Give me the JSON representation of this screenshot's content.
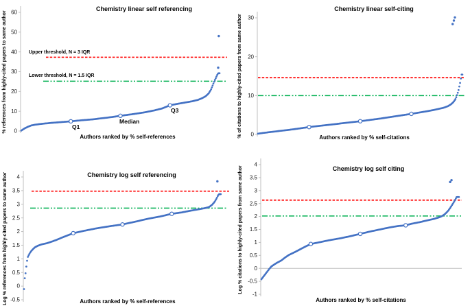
{
  "colors": {
    "dots": "#4472C4",
    "upper_threshold_line": "#FF0000",
    "lower_threshold_line": "#00B050",
    "axis": "#BFBFBF",
    "zero_line": "#BDBDBD",
    "text": "#000000"
  },
  "chart_data": [
    {
      "type": "scatter",
      "position": "top-left",
      "title": "Chemistry linear self referencing",
      "xlabel": "Authors ranked by % self-references",
      "ylabel": "% references from highly-cited papers to same author",
      "ylim": [
        0,
        60
      ],
      "yticks": [
        0,
        10,
        20,
        30,
        40,
        50,
        60
      ],
      "grid": false,
      "legend": "none",
      "thresholds": {
        "upper": {
          "value": 37.3,
          "label": "Upper threshold, N = 3 IQR"
        },
        "lower": {
          "value": 25.2,
          "label": "Lower threshold, N = 1.5 IQR"
        }
      },
      "quartiles": {
        "q1": {
          "x": 0.25,
          "value": 4.9,
          "label": "Q1"
        },
        "median": {
          "x": 0.5,
          "value": 7.7,
          "label": "Median"
        },
        "q3": {
          "x": 0.75,
          "value": 13,
          "label": "Q3"
        }
      },
      "curve": [
        [
          0,
          0.2
        ],
        [
          0.01,
          0.9
        ],
        [
          0.02,
          1.5
        ],
        [
          0.035,
          2.2
        ],
        [
          0.05,
          2.8
        ],
        [
          0.07,
          3.2
        ],
        [
          0.1,
          3.6
        ],
        [
          0.15,
          4.1
        ],
        [
          0.2,
          4.5
        ],
        [
          0.25,
          4.9
        ],
        [
          0.3,
          5.4
        ],
        [
          0.36,
          5.9
        ],
        [
          0.42,
          6.6
        ],
        [
          0.46,
          7.1
        ],
        [
          0.5,
          7.7
        ],
        [
          0.56,
          8.5
        ],
        [
          0.62,
          9.4
        ],
        [
          0.67,
          10.4
        ],
        [
          0.71,
          11.4
        ],
        [
          0.75,
          13.0
        ],
        [
          0.78,
          13.6
        ],
        [
          0.82,
          14.3
        ],
        [
          0.86,
          15.0
        ],
        [
          0.89,
          15.7
        ],
        [
          0.91,
          16.5
        ],
        [
          0.93,
          17.6
        ],
        [
          0.945,
          19.0
        ],
        [
          0.957,
          21.0
        ],
        [
          0.967,
          23.5
        ],
        [
          0.975,
          25.5
        ],
        [
          0.982,
          27.0
        ],
        [
          0.988,
          28.3
        ],
        [
          0.993,
          29.2
        ]
      ],
      "outliers": [
        [
          0.993,
          32
        ],
        [
          0.996,
          48
        ]
      ],
      "zero_line": false
    },
    {
      "type": "scatter",
      "position": "top-right",
      "title": "Chemistry linear self-citing",
      "xlabel": "Authors ranked by % self-citations",
      "ylabel": "% of citations to highly-cited papers from same author",
      "ylim": [
        0,
        30
      ],
      "yticks": [
        0,
        10,
        20,
        30
      ],
      "grid": false,
      "legend": "none",
      "thresholds": {
        "upper": {
          "value": 14.6
        },
        "lower": {
          "value": 10
        }
      },
      "quartiles": {
        "q1": {
          "x": 0.25,
          "value": 1.9
        },
        "median": {
          "x": 0.5,
          "value": 3.4
        },
        "q3": {
          "x": 0.75,
          "value": 5.3
        }
      },
      "curve": [
        [
          0,
          0.2
        ],
        [
          0.02,
          0.35
        ],
        [
          0.05,
          0.55
        ],
        [
          0.09,
          0.8
        ],
        [
          0.13,
          1.05
        ],
        [
          0.17,
          1.3
        ],
        [
          0.21,
          1.6
        ],
        [
          0.25,
          1.9
        ],
        [
          0.3,
          2.2
        ],
        [
          0.35,
          2.5
        ],
        [
          0.4,
          2.8
        ],
        [
          0.45,
          3.1
        ],
        [
          0.5,
          3.4
        ],
        [
          0.55,
          3.75
        ],
        [
          0.6,
          4.1
        ],
        [
          0.65,
          4.5
        ],
        [
          0.7,
          4.9
        ],
        [
          0.75,
          5.3
        ],
        [
          0.79,
          5.65
        ],
        [
          0.83,
          6.0
        ],
        [
          0.86,
          6.3
        ],
        [
          0.89,
          6.65
        ],
        [
          0.91,
          6.9
        ],
        [
          0.93,
          7.3
        ],
        [
          0.945,
          7.8
        ],
        [
          0.957,
          8.4
        ],
        [
          0.967,
          9.2
        ],
        [
          0.974,
          10.2
        ],
        [
          0.98,
          11.2
        ],
        [
          0.985,
          12.4
        ],
        [
          0.989,
          13.4
        ],
        [
          0.992,
          14.3
        ],
        [
          0.995,
          15.4
        ]
      ],
      "outliers": [
        [
          0.952,
          28.4
        ],
        [
          0.958,
          29.3
        ],
        [
          0.963,
          30.1
        ]
      ],
      "zero_line": false
    },
    {
      "type": "scatter",
      "position": "bottom-left",
      "title": "Chemistry log self referencing",
      "xlabel": "Authors ranked by % self-references",
      "ylabel": "Log % references from highly-cited papers to same author",
      "ylim": [
        -0.5,
        4
      ],
      "yticks": [
        -0.5,
        0,
        0.5,
        1,
        1.5,
        2,
        2.5,
        3,
        3.5,
        4
      ],
      "grid": false,
      "legend": "none",
      "thresholds": {
        "upper": {
          "value": 3.48
        },
        "lower": {
          "value": 2.86
        }
      },
      "quartiles": {
        "q1": {
          "x": 0.25,
          "value": 1.94
        },
        "median": {
          "x": 0.5,
          "value": 2.26
        },
        "q3": {
          "x": 0.75,
          "value": 2.65
        }
      },
      "curve": [
        [
          0,
          -0.11
        ],
        [
          0.004,
          0.3
        ],
        [
          0.008,
          0.48
        ],
        [
          0.013,
          0.8
        ],
        [
          0.018,
          1.05
        ],
        [
          0.025,
          1.15
        ],
        [
          0.033,
          1.25
        ],
        [
          0.042,
          1.33
        ],
        [
          0.055,
          1.42
        ],
        [
          0.07,
          1.48
        ],
        [
          0.09,
          1.53
        ],
        [
          0.12,
          1.58
        ],
        [
          0.16,
          1.68
        ],
        [
          0.2,
          1.8
        ],
        [
          0.25,
          1.94
        ],
        [
          0.3,
          2.02
        ],
        [
          0.37,
          2.12
        ],
        [
          0.44,
          2.2
        ],
        [
          0.5,
          2.26
        ],
        [
          0.57,
          2.37
        ],
        [
          0.63,
          2.47
        ],
        [
          0.69,
          2.55
        ],
        [
          0.75,
          2.65
        ],
        [
          0.8,
          2.7
        ],
        [
          0.85,
          2.77
        ],
        [
          0.89,
          2.82
        ],
        [
          0.92,
          2.86
        ],
        [
          0.94,
          2.9
        ],
        [
          0.955,
          2.98
        ],
        [
          0.967,
          3.08
        ],
        [
          0.977,
          3.2
        ],
        [
          0.985,
          3.32
        ],
        [
          0.99,
          3.37
        ]
      ],
      "outliers": [
        [
          0.982,
          3.84
        ]
      ],
      "zero_line": false
    },
    {
      "type": "scatter",
      "position": "bottom-right",
      "title": "Chemistry log self citing",
      "xlabel": "Authors ranked by % self-citations",
      "ylabel": "Log % citations to highly-cited papers from same author",
      "ylim": [
        -1,
        4
      ],
      "yticks": [
        -1,
        -0.5,
        0,
        0.5,
        1,
        1.5,
        2,
        2.5,
        3,
        3.5,
        4
      ],
      "grid": false,
      "legend": "none",
      "thresholds": {
        "upper": {
          "value": 2.63
        },
        "lower": {
          "value": 2.02
        }
      },
      "quartiles": {
        "q1": {
          "x": 0.25,
          "value": 0.94
        },
        "median": {
          "x": 0.5,
          "value": 1.33
        },
        "q3": {
          "x": 0.73,
          "value": 1.66
        }
      },
      "curve": [
        [
          0,
          -0.42
        ],
        [
          0.008,
          -0.34
        ],
        [
          0.016,
          -0.26
        ],
        [
          0.024,
          -0.18
        ],
        [
          0.032,
          -0.1
        ],
        [
          0.04,
          -0.02
        ],
        [
          0.05,
          0.07
        ],
        [
          0.065,
          0.15
        ],
        [
          0.08,
          0.22
        ],
        [
          0.1,
          0.3
        ],
        [
          0.12,
          0.42
        ],
        [
          0.14,
          0.52
        ],
        [
          0.17,
          0.63
        ],
        [
          0.2,
          0.75
        ],
        [
          0.22,
          0.83
        ],
        [
          0.25,
          0.94
        ],
        [
          0.29,
          1.0
        ],
        [
          0.34,
          1.08
        ],
        [
          0.4,
          1.16
        ],
        [
          0.45,
          1.24
        ],
        [
          0.5,
          1.33
        ],
        [
          0.55,
          1.42
        ],
        [
          0.6,
          1.5
        ],
        [
          0.65,
          1.58
        ],
        [
          0.69,
          1.63
        ],
        [
          0.73,
          1.66
        ],
        [
          0.76,
          1.72
        ],
        [
          0.8,
          1.78
        ],
        [
          0.84,
          1.85
        ],
        [
          0.87,
          1.9
        ],
        [
          0.9,
          1.97
        ],
        [
          0.915,
          2.02
        ],
        [
          0.93,
          2.1
        ],
        [
          0.945,
          2.22
        ],
        [
          0.957,
          2.35
        ],
        [
          0.967,
          2.47
        ],
        [
          0.976,
          2.58
        ],
        [
          0.983,
          2.68
        ],
        [
          0.988,
          2.75
        ]
      ],
      "outliers": [
        [
          0.955,
          3.33
        ],
        [
          0.962,
          3.4
        ]
      ],
      "zero_line": true
    }
  ]
}
